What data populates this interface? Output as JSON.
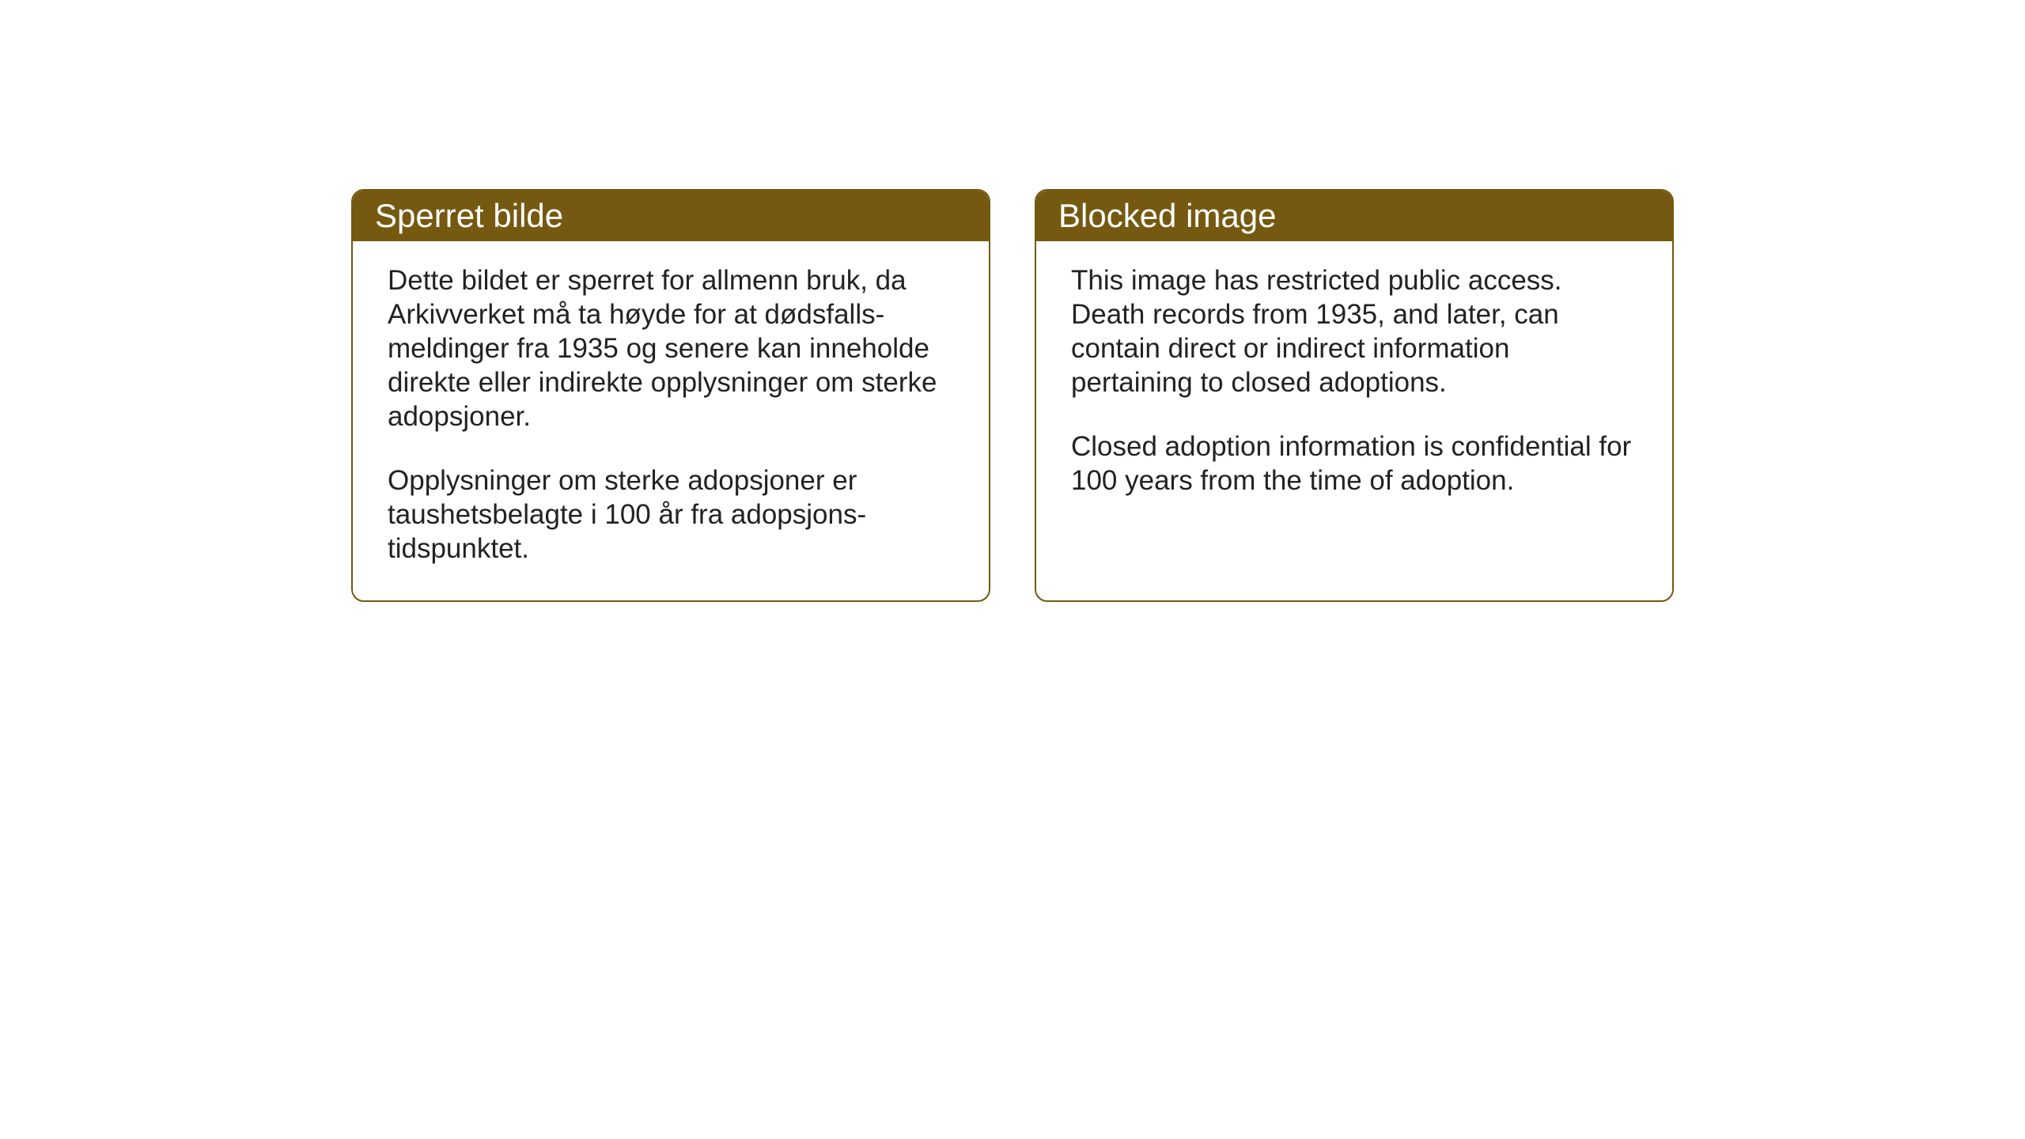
{
  "cards": {
    "norwegian": {
      "title": "Sperret bilde",
      "paragraph1": "Dette bildet er sperret for allmenn bruk, da Arkivverket må ta høyde for at dødsfalls-meldinger fra 1935 og senere kan inneholde direkte eller indirekte opplysninger om sterke adopsjoner.",
      "paragraph2": "Opplysninger om sterke adopsjoner er taushetsbelagte i 100 år fra adopsjons-tidspunktet."
    },
    "english": {
      "title": "Blocked image",
      "paragraph1": "This image has restricted public access. Death records from 1935, and later, can contain direct or indirect information pertaining to closed adoptions.",
      "paragraph2": "Closed adoption information is confidential for 100 years from the time of adoption."
    }
  },
  "styling": {
    "header_background": "#755911",
    "header_text_color": "#ffffff",
    "border_color": "#755911",
    "body_text_color": "#222222",
    "page_background": "#ffffff",
    "border_radius": 16,
    "title_fontsize": 42,
    "body_fontsize": 35
  }
}
